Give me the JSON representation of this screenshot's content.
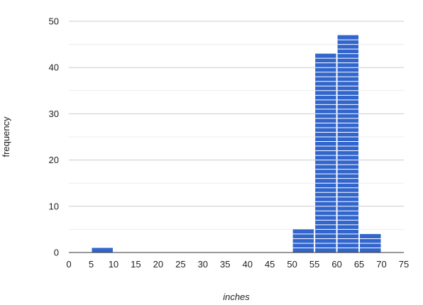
{
  "chart_data": {
    "type": "bar",
    "subtype": "histogram",
    "xlabel": "inches",
    "ylabel": "frequency",
    "xlim": [
      0,
      75
    ],
    "ylim": [
      0,
      50
    ],
    "x_ticks": [
      "0",
      "5",
      "10",
      "15",
      "20",
      "25",
      "30",
      "35",
      "40",
      "45",
      "50",
      "55",
      "60",
      "65",
      "70",
      "75"
    ],
    "y_ticks": [
      "0",
      "10",
      "20",
      "30",
      "40",
      "50"
    ],
    "grid": "horizontal",
    "legend": "none",
    "bar_color": "#3366cc",
    "stripe_color": "#ffffff",
    "bins": [
      {
        "from": 5,
        "to": 10,
        "value": 1
      },
      {
        "from": 50,
        "to": 55,
        "value": 5
      },
      {
        "from": 55,
        "to": 60,
        "value": 43
      },
      {
        "from": 60,
        "to": 65,
        "value": 47
      },
      {
        "from": 65,
        "to": 70,
        "value": 4
      }
    ]
  }
}
